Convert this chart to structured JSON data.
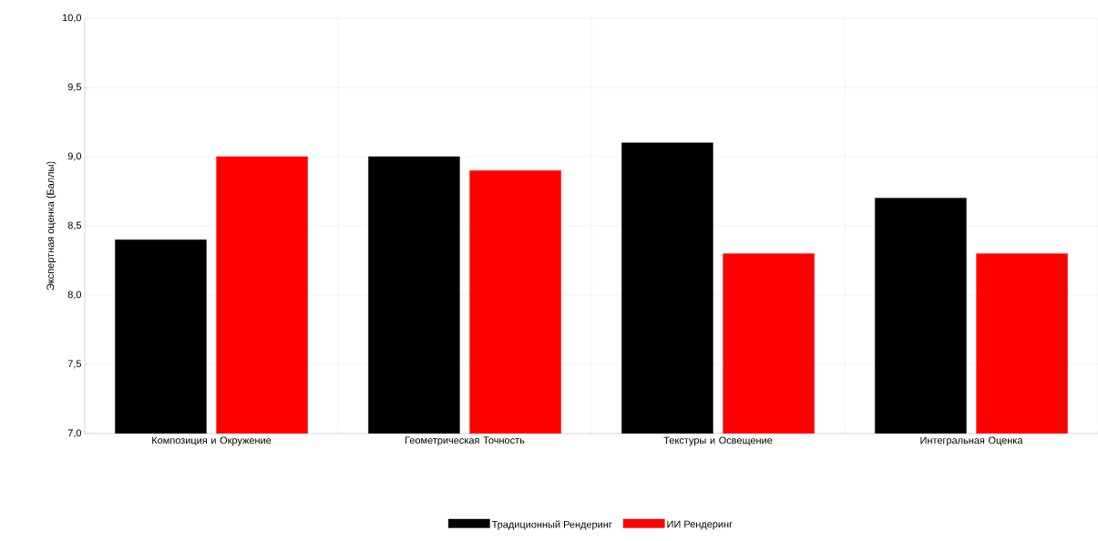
{
  "chart_data": {
    "type": "bar",
    "ylabel": "Экспертная оценка (Баллы)",
    "categories": [
      "Композиция и Окружение",
      "Геометрическая Точность",
      "Текстуры и Освещение",
      "Интегральная Оценка"
    ],
    "series": [
      {
        "name": "Традиционный Рендеринг",
        "color": "#000000",
        "values": [
          8.4,
          9.0,
          9.1,
          8.7
        ]
      },
      {
        "name": "ИИ Рендеринг",
        "color": "#ff0000",
        "values": [
          9.0,
          8.9,
          8.3,
          8.3
        ]
      }
    ],
    "ylim": [
      7,
      10
    ],
    "yticks": [
      {
        "value": 7,
        "label": "7,0"
      },
      {
        "value": 7.5,
        "label": "7,5"
      },
      {
        "value": 8,
        "label": "8,0"
      },
      {
        "value": 8.5,
        "label": "8,5"
      },
      {
        "value": 9,
        "label": "9,0"
      },
      {
        "value": 9.5,
        "label": "9,5"
      },
      {
        "value": 10,
        "label": "10,0"
      }
    ],
    "grid": true,
    "legend": "bottom"
  }
}
